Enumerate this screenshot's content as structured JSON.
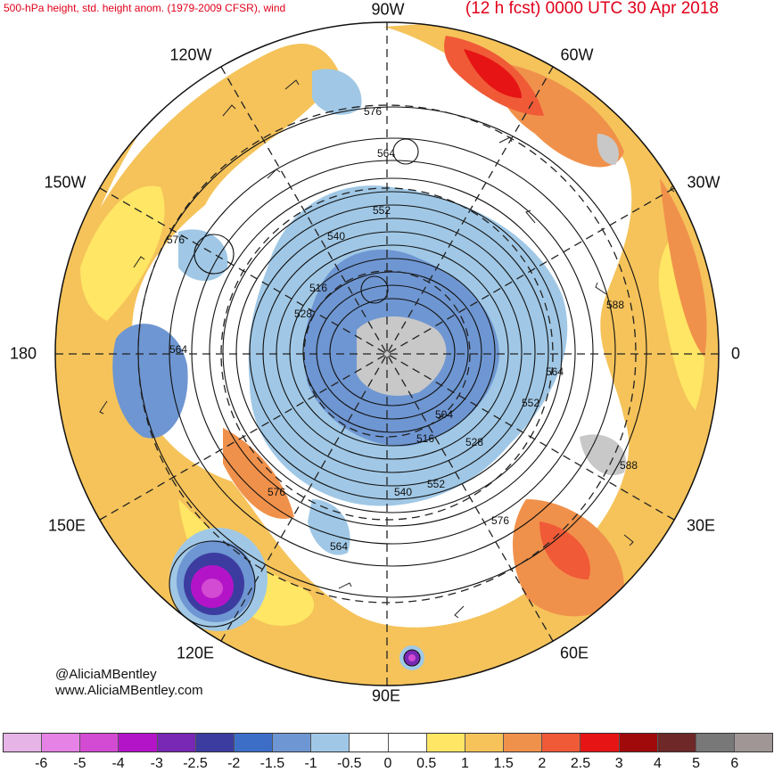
{
  "header": {
    "left_title": "500-hPa height, std. height anom. (1979-2009 CFSR), wind",
    "right_title": "(12 h fcst) 0000 UTC 30 Apr 2018"
  },
  "longitude_labels": {
    "lon_90w": "90W",
    "lon_120w": "120W",
    "lon_60w": "60W",
    "lon_150w": "150W",
    "lon_30w": "30W",
    "lon_180": "180",
    "lon_0": "0",
    "lon_150e": "150E",
    "lon_30e": "30E",
    "lon_120e": "120E",
    "lon_60e": "60E",
    "lon_90e": "90E"
  },
  "credits": {
    "twitter": "@AliciaMBentley",
    "website": "www.AliciaMBentley.com"
  },
  "contour_labels": [
    "576",
    "564",
    "552",
    "540",
    "516",
    "528",
    "576",
    "564",
    "588",
    "564",
    "552",
    "504",
    "516",
    "528",
    "540",
    "552",
    "576",
    "576",
    "564",
    "588"
  ],
  "colorbar": {
    "ticks": [
      "-6",
      "-5",
      "-4",
      "-3",
      "-2.5",
      "-2",
      "-1.5",
      "-1",
      "-0.5",
      "0",
      "0.5",
      "1",
      "1.5",
      "2",
      "2.5",
      "3",
      "4",
      "5",
      "6"
    ],
    "colors": [
      "#e6b4e6",
      "#e682e6",
      "#d24bd2",
      "#b414c8",
      "#7828b4",
      "#3c3ca0",
      "#3c6ec8",
      "#6e96d2",
      "#a0c8e6",
      "#ffffff",
      "#ffffff",
      "#ffe664",
      "#f5c35a",
      "#f0914b",
      "#f05a37",
      "#e61414",
      "#a00a0a",
      "#6e2828",
      "#787878",
      "#a09696"
    ]
  }
}
